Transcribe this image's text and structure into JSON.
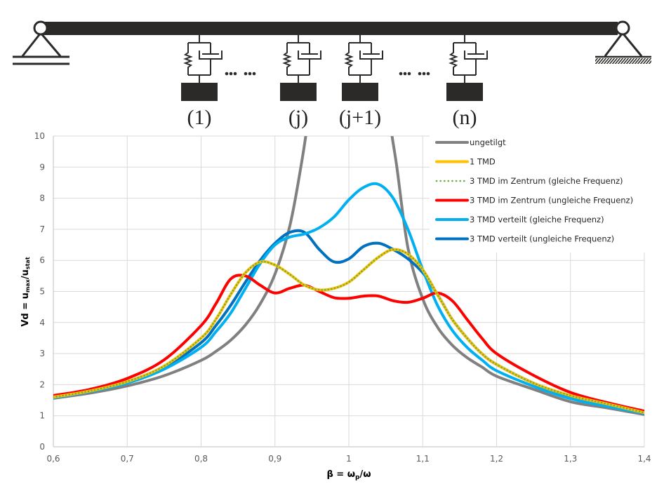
{
  "diagram": {
    "labels": [
      "(1)",
      "(j)",
      "(j+1)",
      "(n)"
    ],
    "ellipsis": [
      "••• •••",
      "••• •••"
    ]
  },
  "chart_data": {
    "type": "line",
    "title": "",
    "xlabel": "β = ωp/ω",
    "xlabel_main": "β = ω",
    "xlabel_sub": "p",
    "xlabel_tail": "/ω",
    "ylabel": "Vd = umax/ustat",
    "ylabel_parts": [
      "Vd = u",
      "max",
      "/u",
      "stat"
    ],
    "xlim": [
      0.6,
      1.4
    ],
    "ylim": [
      0,
      10
    ],
    "grid": true,
    "legend_position": "top-right",
    "x_ticks": [
      "0,6",
      "0,7",
      "0,8",
      "0,9",
      "1",
      "1,1",
      "1,2",
      "1,3",
      "1,4"
    ],
    "x_tick_values": [
      0.6,
      0.7,
      0.8,
      0.9,
      1.0,
      1.1,
      1.2,
      1.3,
      1.4
    ],
    "y_ticks": [
      "0",
      "1",
      "2",
      "3",
      "4",
      "5",
      "6",
      "7",
      "8",
      "9",
      "10"
    ],
    "y_tick_values": [
      0,
      1,
      2,
      3,
      4,
      5,
      6,
      7,
      8,
      9,
      10
    ],
    "x": [
      0.6,
      0.65,
      0.7,
      0.75,
      0.8,
      0.82,
      0.84,
      0.86,
      0.88,
      0.9,
      0.92,
      0.94,
      0.96,
      0.98,
      1.0,
      1.02,
      1.04,
      1.06,
      1.08,
      1.1,
      1.12,
      1.14,
      1.16,
      1.18,
      1.2,
      1.25,
      1.3,
      1.35,
      1.4
    ],
    "series": [
      {
        "name": "ungetilgt",
        "color": "#808080",
        "style": "solid",
        "values": [
          1.56,
          1.73,
          1.96,
          2.29,
          2.78,
          3.07,
          3.43,
          3.92,
          4.6,
          5.56,
          7.1,
          9.5,
          null,
          null,
          null,
          null,
          null,
          9.5,
          6.4,
          4.76,
          3.85,
          3.27,
          2.87,
          2.57,
          2.27,
          1.85,
          1.45,
          1.25,
          1.04
        ]
      },
      {
        "name": "1 TMD",
        "color": "#FFC000",
        "style": "solid",
        "values": [
          1.6,
          1.8,
          2.1,
          2.6,
          3.5,
          4.1,
          4.9,
          5.6,
          5.95,
          5.85,
          5.55,
          5.2,
          5.05,
          5.1,
          5.3,
          5.7,
          6.1,
          6.35,
          6.2,
          5.7,
          4.9,
          4.1,
          3.5,
          3.0,
          2.65,
          2.05,
          1.65,
          1.38,
          1.1
        ]
      },
      {
        "name": "3 TMD im Zentrum (gleiche Frequenz)",
        "color": "#70AD47",
        "style": "dotted",
        "values": [
          1.6,
          1.8,
          2.1,
          2.6,
          3.5,
          4.1,
          4.9,
          5.6,
          5.95,
          5.85,
          5.55,
          5.2,
          5.05,
          5.1,
          5.3,
          5.7,
          6.1,
          6.35,
          6.2,
          5.7,
          4.9,
          4.1,
          3.5,
          3.0,
          2.65,
          2.05,
          1.65,
          1.38,
          1.1
        ]
      },
      {
        "name": "3 TMD im Zentrum (ungleiche Frequenz)",
        "color": "#FF0000",
        "style": "solid",
        "values": [
          1.65,
          1.85,
          2.2,
          2.8,
          3.9,
          4.6,
          5.4,
          5.5,
          5.2,
          4.95,
          5.1,
          5.2,
          5.0,
          4.8,
          4.78,
          4.85,
          4.85,
          4.7,
          4.65,
          4.78,
          4.95,
          4.7,
          4.1,
          3.5,
          3.0,
          2.3,
          1.75,
          1.42,
          1.15
        ]
      },
      {
        "name": "3 TMD verteilt (gleiche Frequenz)",
        "color": "#00B0F0",
        "style": "solid",
        "values": [
          1.58,
          1.78,
          2.05,
          2.5,
          3.2,
          3.7,
          4.3,
          5.1,
          5.9,
          6.5,
          6.75,
          6.85,
          7.05,
          7.4,
          7.95,
          8.35,
          8.45,
          8.0,
          7.0,
          5.7,
          4.55,
          3.75,
          3.2,
          2.8,
          2.45,
          1.95,
          1.55,
          1.3,
          1.08
        ]
      },
      {
        "name": "3 TMD verteilt (ungleiche Frequenz)",
        "color": "#0070C0",
        "style": "solid",
        "values": [
          1.6,
          1.8,
          2.1,
          2.55,
          3.35,
          3.9,
          4.55,
          5.3,
          6.0,
          6.55,
          6.9,
          6.9,
          6.35,
          5.95,
          6.05,
          6.45,
          6.55,
          6.35,
          6.05,
          5.6,
          4.9,
          4.1,
          3.5,
          3.0,
          2.65,
          2.05,
          1.62,
          1.35,
          1.1
        ]
      }
    ]
  }
}
